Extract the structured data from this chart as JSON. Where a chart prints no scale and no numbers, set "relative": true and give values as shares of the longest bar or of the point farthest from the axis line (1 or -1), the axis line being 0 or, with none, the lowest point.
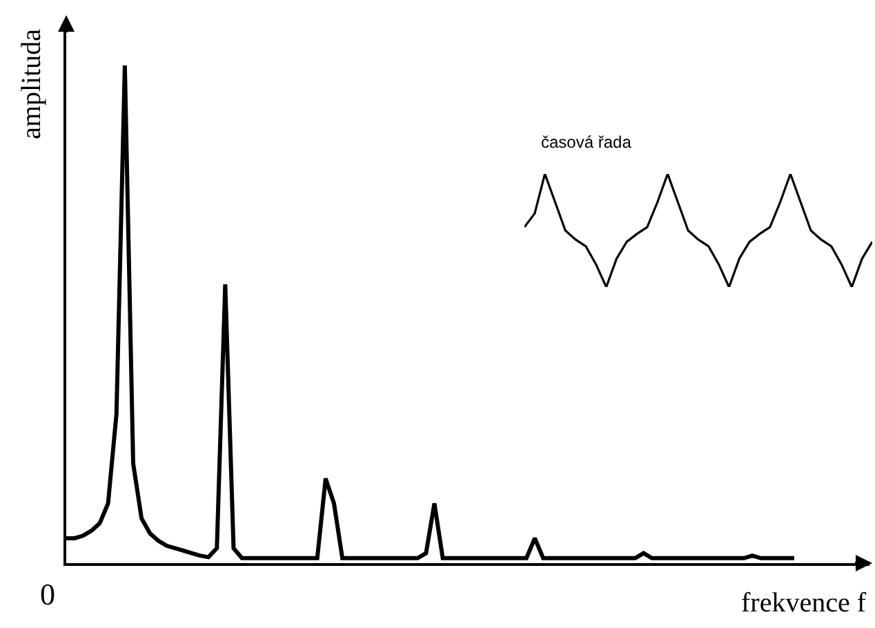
{
  "chart_data": [
    {
      "type": "line",
      "xlabel": "frekvence f",
      "ylabel": "amplituda",
      "relative": true,
      "color": "#000000",
      "annotations": [
        "0"
      ],
      "categories": [
        null,
        null,
        null,
        null,
        null,
        null,
        null,
        null,
        null,
        null,
        null,
        null,
        null,
        null,
        null,
        null,
        null,
        null,
        null,
        null,
        null,
        null,
        null,
        null,
        null,
        null,
        null,
        null,
        null,
        null,
        null,
        null,
        null,
        null,
        null,
        null,
        null,
        null,
        null,
        null,
        null,
        null,
        null,
        null,
        null,
        null,
        null,
        null,
        null,
        null,
        null,
        null,
        null,
        null,
        null,
        null,
        null,
        null,
        null,
        null,
        null,
        null,
        null,
        null,
        null,
        null,
        null,
        null,
        null,
        null,
        null,
        null,
        null,
        null,
        null,
        null,
        null,
        null,
        null,
        null,
        null,
        null,
        null,
        null,
        null,
        null,
        null,
        null
      ],
      "values": [
        0.05,
        0.05,
        0.055,
        0.065,
        0.08,
        0.12,
        0.3,
        1.0,
        0.2,
        0.09,
        0.06,
        0.045,
        0.035,
        0.03,
        0.025,
        0.02,
        0.015,
        0.012,
        0.03,
        0.56,
        0.03,
        0.01,
        0.01,
        0.01,
        0.01,
        0.01,
        0.01,
        0.01,
        0.01,
        0.01,
        0.01,
        0.17,
        0.12,
        0.01,
        0.01,
        0.01,
        0.01,
        0.01,
        0.01,
        0.01,
        0.01,
        0.01,
        0.01,
        0.02,
        0.12,
        0.01,
        0.01,
        0.01,
        0.01,
        0.01,
        0.01,
        0.01,
        0.01,
        0.01,
        0.01,
        0.01,
        0.05,
        0.01,
        0.01,
        0.01,
        0.01,
        0.01,
        0.01,
        0.01,
        0.01,
        0.01,
        0.01,
        0.01,
        0.01,
        0.02,
        0.01,
        0.01,
        0.01,
        0.01,
        0.01,
        0.01,
        0.01,
        0.01,
        0.01,
        0.01,
        0.01,
        0.01,
        0.015,
        0.01,
        0.01,
        0.01,
        0.01,
        0.01
      ]
    },
    {
      "type": "line",
      "title": "časová řada",
      "relative": true,
      "color": "#000000",
      "categories": [
        null,
        null,
        null,
        null,
        null,
        null,
        null,
        null,
        null,
        null,
        null,
        null,
        null,
        null,
        null,
        null,
        null,
        null,
        null,
        null,
        null,
        null,
        null,
        null,
        null,
        null,
        null,
        null,
        null,
        null,
        null,
        null,
        null,
        null,
        null
      ],
      "values": [
        0.53,
        0.65,
        1.0,
        0.75,
        0.5,
        0.42,
        0.36,
        0.2,
        0.0,
        0.25,
        0.4,
        0.47,
        0.53,
        0.75,
        1.0,
        0.75,
        0.5,
        0.42,
        0.36,
        0.2,
        0.0,
        0.25,
        0.4,
        0.47,
        0.53,
        0.75,
        1.0,
        0.75,
        0.5,
        0.42,
        0.36,
        0.2,
        0.0,
        0.25,
        0.4
      ]
    }
  ]
}
